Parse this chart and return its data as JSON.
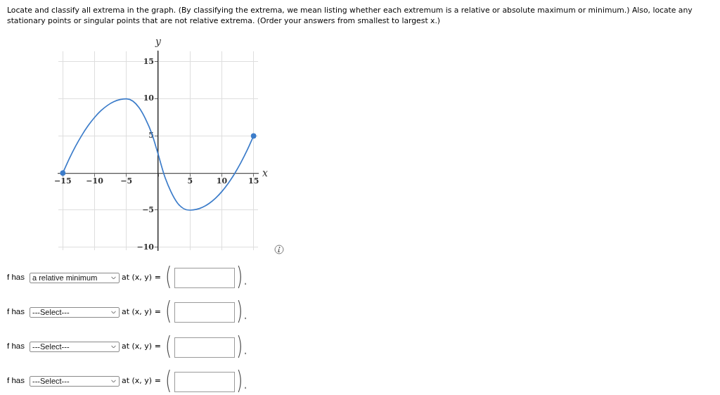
{
  "chart_data": [
    {
      "type": "line",
      "title": "Locate and classify all extrema in the graph. (By classifying the extrema, we mean listing whether each extremum is a relative or absolute maximum or minimum.) Also, locate any stationary points or singular points that are not relative extrema. (Order your answers from smallest to largest x.)",
      "xlabel": "x",
      "ylabel": "y",
      "xlim": [
        -15.7,
        15.7
      ],
      "ylim": [
        -10.4,
        16.4
      ],
      "xticks": [
        {
          "value": -15,
          "label": "−15"
        },
        {
          "value": -10,
          "label": "−10"
        },
        {
          "value": -5,
          "label": "−5"
        },
        {
          "value": 0,
          "label": null
        },
        5,
        10,
        15
      ],
      "yticks": [
        {
          "value": -10,
          "label": "−10"
        },
        {
          "value": -5,
          "label": "−5"
        },
        {
          "value": 0,
          "label": null
        },
        5,
        10,
        15
      ],
      "grid": true,
      "series": [
        {
          "type": "line",
          "color": "#3d7dca",
          "x": [
            -15,
            -14,
            -13,
            -12,
            -11,
            -10,
            -9,
            -8,
            -7,
            -6,
            -5,
            -4,
            -3,
            -2,
            -1,
            0,
            1,
            2,
            3,
            4,
            5,
            6,
            7,
            8,
            9,
            10,
            11,
            12,
            13,
            14,
            15
          ],
          "values": [
            0,
            1.9,
            3.6,
            5.1,
            6.4,
            7.5,
            8.4,
            9.1,
            9.6,
            9.9,
            10,
            9.7,
            8.8,
            7.3,
            5.3,
            2.5,
            -0.4,
            -2.5,
            -4.0,
            -4.8,
            -5,
            -4.9,
            -4.6,
            -4.1,
            -3.4,
            -2.5,
            -1.4,
            -0.1,
            1.4,
            3.1,
            5
          ]
        },
        {
          "type": "scatter",
          "color": "#3d7dca",
          "marker": "circle",
          "x": [
            -15,
            15
          ],
          "values": [
            0,
            5
          ]
        }
      ]
    },
    {
      "type": "other",
      "annotations": [
        "f has",
        "a relative minimum",
        "at (x, y) =",
        "(",
        ").",
        "f has",
        "---Select---",
        "at (x, y) =",
        "(",
        ").",
        "f has",
        "---Select---",
        "at (x, y) =",
        "(",
        ").",
        "f has",
        "---Select---",
        "at (x, y) =",
        "(",
        ")."
      ]
    }
  ]
}
